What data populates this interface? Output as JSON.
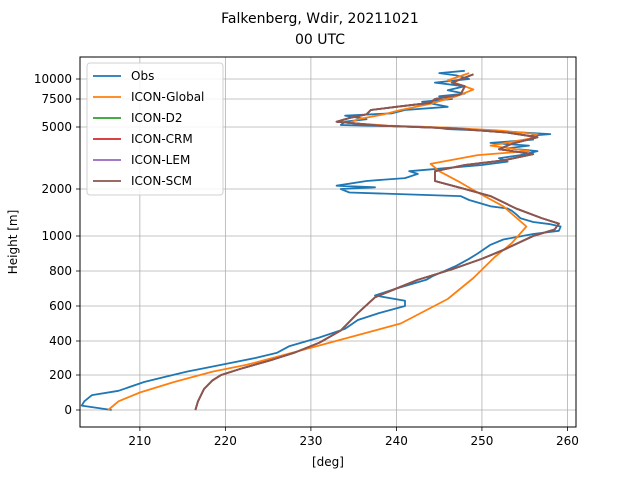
{
  "chart_data": {
    "type": "line",
    "title": "Falkenberg, Wdir, 20211021",
    "subtitle": "00 UTC",
    "xlabel": "[deg]",
    "ylabel": "Height [m]",
    "xlim": [
      203,
      261
    ],
    "xticks": [
      210,
      220,
      230,
      240,
      250,
      260
    ],
    "yticks": [
      {
        "label": "0",
        "value": 0
      },
      {
        "label": "200",
        "value": 200
      },
      {
        "label": "400",
        "value": 400
      },
      {
        "label": "600",
        "value": 600
      },
      {
        "label": "800",
        "value": 800
      },
      {
        "label": "1000",
        "value": 1000
      },
      {
        "label": "2000",
        "value": 2000
      },
      {
        "label": "5000",
        "value": 5000
      },
      {
        "label": "7500",
        "value": 7500
      },
      {
        "label": "10000",
        "value": 10000
      }
    ],
    "grid": true,
    "legend_position": "top-left",
    "series": [
      {
        "name": "Obs",
        "color": "#1f77b4",
        "points": [
          [
            206.7,
            0
          ],
          [
            203.2,
            25
          ],
          [
            203.5,
            50
          ],
          [
            204.4,
            85
          ],
          [
            207.5,
            110
          ],
          [
            210.5,
            160
          ],
          [
            213.0,
            190
          ],
          [
            215.5,
            220
          ],
          [
            217.5,
            240
          ],
          [
            220.5,
            270
          ],
          [
            223.5,
            300
          ],
          [
            226.0,
            330
          ],
          [
            227.5,
            370
          ],
          [
            231.0,
            420
          ],
          [
            234.0,
            470
          ],
          [
            235.5,
            520
          ],
          [
            238.0,
            560
          ],
          [
            241.0,
            600
          ],
          [
            241.0,
            630
          ],
          [
            237.5,
            660
          ],
          [
            240.0,
            700
          ],
          [
            243.5,
            750
          ],
          [
            244.2,
            770
          ],
          [
            247.0,
            830
          ],
          [
            248.5,
            870
          ],
          [
            249.5,
            900
          ],
          [
            251.0,
            950
          ],
          [
            252.5,
            980
          ],
          [
            256.0,
            1030
          ],
          [
            259.0,
            1080
          ],
          [
            259.2,
            1150
          ],
          [
            258.0,
            1190
          ],
          [
            256.0,
            1230
          ],
          [
            254.5,
            1300
          ],
          [
            254.0,
            1380
          ],
          [
            253.5,
            1450
          ],
          [
            253.0,
            1500
          ],
          [
            251.0,
            1550
          ],
          [
            248.5,
            1700
          ],
          [
            247.5,
            1800
          ],
          [
            234.5,
            1900
          ],
          [
            233.5,
            2000
          ],
          [
            237.5,
            2050
          ],
          [
            233.0,
            2100
          ],
          [
            236.5,
            2250
          ],
          [
            241.0,
            2350
          ],
          [
            242.5,
            2500
          ],
          [
            241.5,
            2600
          ],
          [
            245.0,
            2700
          ],
          [
            250.0,
            2850
          ],
          [
            253.0,
            3000
          ],
          [
            252.0,
            3150
          ],
          [
            254.5,
            3300
          ],
          [
            256.5,
            3500
          ],
          [
            253.0,
            3650
          ],
          [
            255.5,
            3800
          ],
          [
            251.0,
            3950
          ],
          [
            256.0,
            4150
          ],
          [
            255.8,
            4400
          ],
          [
            258.0,
            4500
          ],
          [
            252.0,
            4700
          ],
          [
            246.0,
            4850
          ],
          [
            244.0,
            5000
          ],
          [
            233.5,
            5150
          ],
          [
            234.0,
            5400
          ],
          [
            236.5,
            5600
          ],
          [
            234.0,
            5900
          ],
          [
            239.5,
            6100
          ],
          [
            241.0,
            6400
          ],
          [
            246.0,
            6700
          ],
          [
            243.0,
            7200
          ],
          [
            246.5,
            7500
          ],
          [
            245.0,
            7800
          ],
          [
            248.0,
            8100
          ],
          [
            246.0,
            8500
          ],
          [
            248.0,
            9000
          ],
          [
            244.5,
            9500
          ],
          [
            248.5,
            10000
          ],
          [
            247.0,
            10300
          ],
          [
            245.0,
            10500
          ],
          [
            248.0,
            10700
          ]
        ]
      },
      {
        "name": "ICON-Global",
        "color": "#ff7f0e",
        "points": [
          [
            206.3,
            0
          ],
          [
            207.5,
            50
          ],
          [
            210.0,
            100
          ],
          [
            214.0,
            160
          ],
          [
            218.5,
            220
          ],
          [
            222.5,
            260
          ],
          [
            230.0,
            360
          ],
          [
            240.5,
            500
          ],
          [
            246.0,
            640
          ],
          [
            249.0,
            760
          ],
          [
            251.5,
            880
          ],
          [
            253.5,
            960
          ],
          [
            255.2,
            1150
          ],
          [
            252.5,
            1550
          ],
          [
            249.5,
            1900
          ],
          [
            247.5,
            2200
          ],
          [
            245.0,
            2600
          ],
          [
            244.0,
            2900
          ],
          [
            249.5,
            3300
          ],
          [
            255.5,
            3500
          ],
          [
            251.0,
            3800
          ],
          [
            255.5,
            4200
          ],
          [
            256.5,
            4500
          ],
          [
            252.0,
            4750
          ],
          [
            246.0,
            4950
          ],
          [
            239.0,
            5100
          ],
          [
            234.5,
            5300
          ],
          [
            235.5,
            5600
          ],
          [
            238.5,
            6000
          ],
          [
            240.5,
            6400
          ],
          [
            244.0,
            7000
          ],
          [
            247.0,
            7800
          ],
          [
            249.0,
            8600
          ],
          [
            247.5,
            9200
          ],
          [
            246.0,
            9800
          ],
          [
            248.5,
            10500
          ]
        ]
      },
      {
        "name": "ICON-D2",
        "color": "#2ca02c",
        "points": [
          [
            216.5,
            0
          ],
          [
            216.8,
            50
          ],
          [
            217.5,
            120
          ],
          [
            218.5,
            170
          ],
          [
            219.5,
            200
          ],
          [
            222.0,
            240
          ],
          [
            225.5,
            290
          ],
          [
            228.0,
            330
          ],
          [
            231.0,
            390
          ],
          [
            233.5,
            460
          ],
          [
            235.5,
            560
          ],
          [
            237.5,
            650
          ],
          [
            240.0,
            700
          ],
          [
            242.5,
            750
          ],
          [
            246.5,
            810
          ],
          [
            250.0,
            870
          ],
          [
            252.5,
            920
          ],
          [
            256.0,
            1000
          ],
          [
            258.5,
            1100
          ],
          [
            259.0,
            1200
          ],
          [
            257.0,
            1300
          ],
          [
            254.0,
            1500
          ],
          [
            251.0,
            1800
          ],
          [
            248.0,
            2000
          ],
          [
            244.5,
            2250
          ],
          [
            244.5,
            2600
          ],
          [
            248.0,
            2850
          ],
          [
            252.5,
            3050
          ],
          [
            256.0,
            3350
          ],
          [
            252.0,
            3600
          ],
          [
            253.5,
            3900
          ],
          [
            256.5,
            4300
          ],
          [
            253.0,
            4600
          ],
          [
            246.5,
            4900
          ],
          [
            238.0,
            5100
          ],
          [
            233.0,
            5400
          ],
          [
            234.5,
            5700
          ],
          [
            236.5,
            6000
          ],
          [
            237.0,
            6400
          ],
          [
            240.0,
            6700
          ],
          [
            244.0,
            7100
          ],
          [
            244.5,
            7500
          ],
          [
            247.5,
            8000
          ],
          [
            248.0,
            9000
          ],
          [
            246.5,
            9500
          ],
          [
            249.0,
            10400
          ]
        ]
      },
      {
        "name": "ICON-CRM",
        "color": "#d62728",
        "points": [
          [
            216.5,
            0
          ],
          [
            216.8,
            50
          ],
          [
            217.5,
            120
          ],
          [
            218.5,
            170
          ],
          [
            219.5,
            200
          ],
          [
            222.0,
            240
          ],
          [
            225.5,
            290
          ],
          [
            228.0,
            330
          ],
          [
            231.0,
            390
          ],
          [
            233.5,
            460
          ],
          [
            235.5,
            560
          ],
          [
            237.5,
            650
          ],
          [
            240.0,
            700
          ],
          [
            242.5,
            750
          ],
          [
            246.5,
            810
          ],
          [
            250.0,
            870
          ],
          [
            252.5,
            920
          ],
          [
            256.0,
            1000
          ],
          [
            258.5,
            1100
          ],
          [
            259.0,
            1200
          ],
          [
            257.0,
            1300
          ],
          [
            254.0,
            1500
          ],
          [
            251.0,
            1800
          ],
          [
            248.0,
            2000
          ],
          [
            244.5,
            2250
          ],
          [
            244.5,
            2600
          ],
          [
            248.0,
            2850
          ],
          [
            252.5,
            3050
          ],
          [
            256.0,
            3350
          ],
          [
            252.0,
            3600
          ],
          [
            253.5,
            3900
          ],
          [
            256.5,
            4300
          ],
          [
            253.0,
            4600
          ],
          [
            246.5,
            4900
          ],
          [
            238.0,
            5100
          ],
          [
            233.0,
            5400
          ],
          [
            234.5,
            5700
          ],
          [
            236.5,
            6000
          ],
          [
            237.0,
            6400
          ],
          [
            240.0,
            6700
          ],
          [
            244.0,
            7100
          ],
          [
            244.5,
            7500
          ],
          [
            247.5,
            8000
          ],
          [
            248.0,
            9000
          ],
          [
            246.5,
            9500
          ],
          [
            249.0,
            10400
          ]
        ]
      },
      {
        "name": "ICON-LEM",
        "color": "#9467bd",
        "points": [
          [
            216.5,
            0
          ],
          [
            216.8,
            50
          ],
          [
            217.5,
            120
          ],
          [
            218.5,
            170
          ],
          [
            219.5,
            200
          ],
          [
            222.0,
            240
          ],
          [
            225.5,
            290
          ],
          [
            228.0,
            330
          ],
          [
            231.0,
            390
          ],
          [
            233.5,
            460
          ],
          [
            235.5,
            560
          ],
          [
            237.5,
            650
          ],
          [
            240.0,
            700
          ],
          [
            242.5,
            750
          ],
          [
            246.5,
            810
          ],
          [
            250.0,
            870
          ],
          [
            252.5,
            920
          ],
          [
            256.0,
            1000
          ],
          [
            258.5,
            1100
          ],
          [
            259.0,
            1200
          ],
          [
            257.0,
            1300
          ],
          [
            254.0,
            1500
          ],
          [
            251.0,
            1800
          ],
          [
            248.0,
            2000
          ],
          [
            244.5,
            2250
          ],
          [
            244.5,
            2600
          ],
          [
            248.0,
            2850
          ],
          [
            252.5,
            3050
          ],
          [
            256.0,
            3350
          ],
          [
            252.0,
            3600
          ],
          [
            253.5,
            3900
          ],
          [
            256.5,
            4300
          ],
          [
            253.0,
            4600
          ],
          [
            246.5,
            4900
          ],
          [
            238.0,
            5100
          ],
          [
            233.0,
            5400
          ],
          [
            234.5,
            5700
          ],
          [
            236.5,
            6000
          ],
          [
            237.0,
            6400
          ],
          [
            240.0,
            6700
          ],
          [
            244.0,
            7100
          ],
          [
            244.5,
            7500
          ],
          [
            247.5,
            8000
          ],
          [
            248.0,
            9000
          ],
          [
            246.5,
            9500
          ],
          [
            249.0,
            10400
          ]
        ]
      },
      {
        "name": "ICON-SCM",
        "color": "#8c564b",
        "points": [
          [
            216.5,
            0
          ],
          [
            216.8,
            50
          ],
          [
            217.5,
            120
          ],
          [
            218.5,
            170
          ],
          [
            219.5,
            200
          ],
          [
            222.0,
            240
          ],
          [
            225.5,
            290
          ],
          [
            228.0,
            330
          ],
          [
            231.0,
            390
          ],
          [
            233.5,
            460
          ],
          [
            235.5,
            560
          ],
          [
            237.5,
            650
          ],
          [
            240.0,
            700
          ],
          [
            242.5,
            750
          ],
          [
            246.5,
            810
          ],
          [
            250.0,
            870
          ],
          [
            252.5,
            920
          ],
          [
            256.0,
            1000
          ],
          [
            258.5,
            1100
          ],
          [
            259.0,
            1200
          ],
          [
            257.0,
            1300
          ],
          [
            254.0,
            1500
          ],
          [
            251.0,
            1800
          ],
          [
            248.0,
            2000
          ],
          [
            244.5,
            2250
          ],
          [
            244.5,
            2600
          ],
          [
            248.0,
            2850
          ],
          [
            252.5,
            3050
          ],
          [
            256.0,
            3350
          ],
          [
            252.0,
            3600
          ],
          [
            253.5,
            3900
          ],
          [
            256.5,
            4300
          ],
          [
            253.0,
            4600
          ],
          [
            246.5,
            4900
          ],
          [
            238.0,
            5100
          ],
          [
            233.0,
            5400
          ],
          [
            234.5,
            5700
          ],
          [
            236.5,
            6000
          ],
          [
            237.0,
            6400
          ],
          [
            240.0,
            6700
          ],
          [
            244.0,
            7100
          ],
          [
            244.5,
            7500
          ],
          [
            247.5,
            8000
          ],
          [
            248.0,
            9000
          ],
          [
            246.5,
            9500
          ],
          [
            249.0,
            10400
          ]
        ]
      }
    ]
  }
}
